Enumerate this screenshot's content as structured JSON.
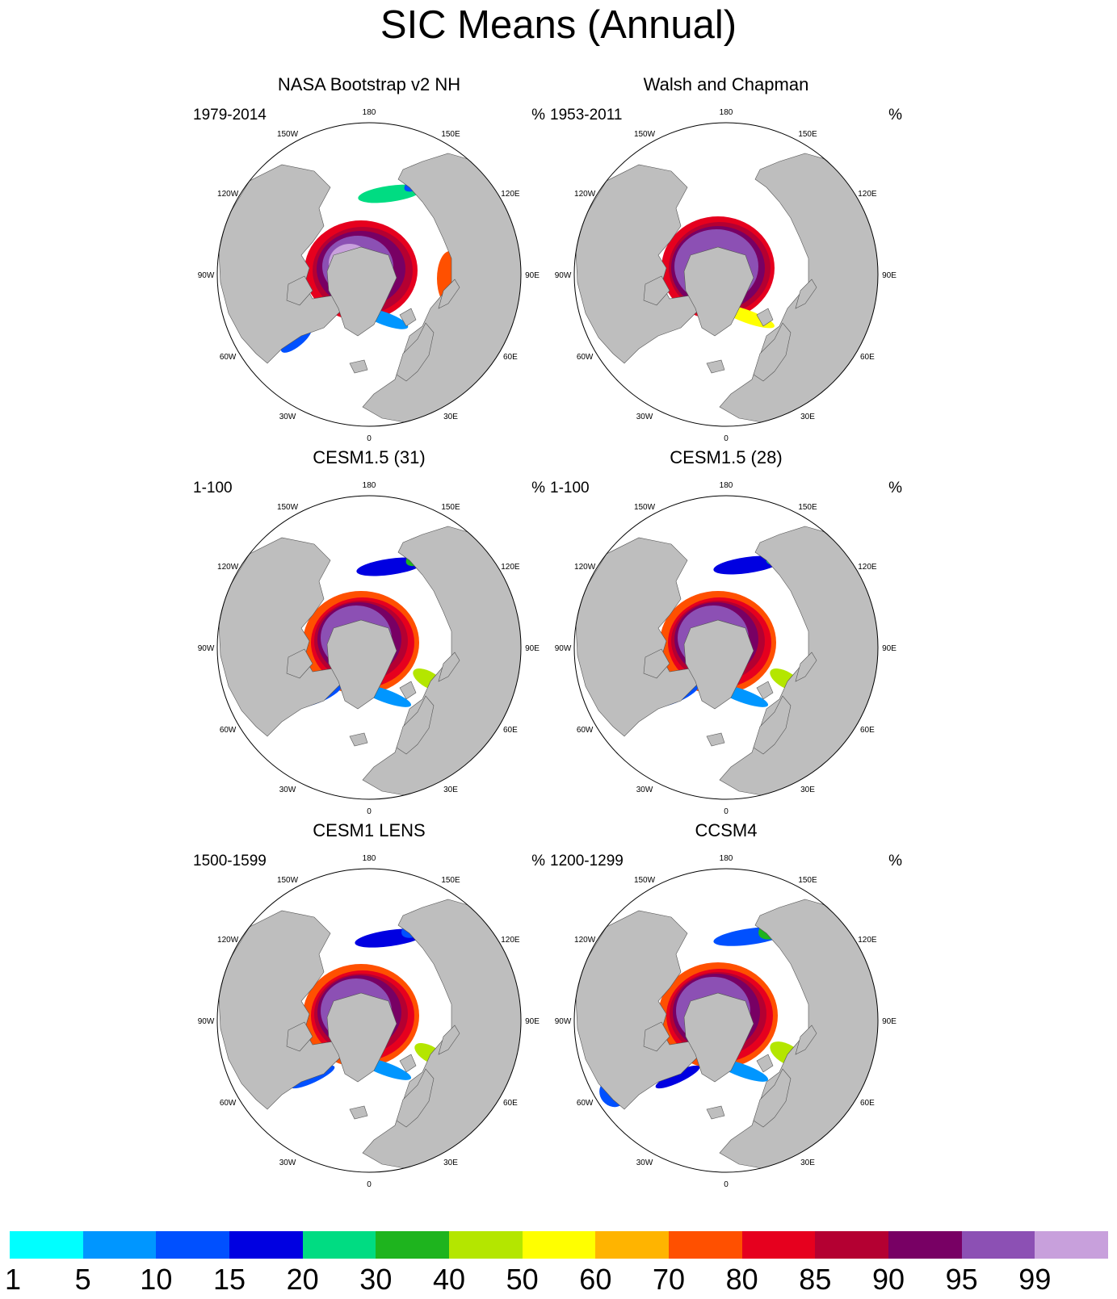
{
  "title": "SIC Means (Annual)",
  "unit": "%",
  "longitude_labels": [
    "180",
    "150E",
    "120E",
    "90E",
    "60E",
    "30E",
    "0",
    "30W",
    "60W",
    "90W",
    "120W",
    "150W"
  ],
  "panels": [
    {
      "title": "NASA Bootstrap v2 NH",
      "period": "1979-2014",
      "unit": "%"
    },
    {
      "title": "Walsh and Chapman",
      "period": "1953-2011",
      "unit": "%"
    },
    {
      "title": "CESM1.5 (31)",
      "period": "1-100",
      "unit": "%"
    },
    {
      "title": "CESM1.5 (28)",
      "period": "1-100",
      "unit": "%"
    },
    {
      "title": "CESM1 LENS",
      "period": "1500-1599",
      "unit": "%"
    },
    {
      "title": "CCSM4",
      "period": "1200-1299",
      "unit": "%"
    }
  ],
  "colorbar": {
    "labels": [
      "1",
      "5",
      "10",
      "15",
      "20",
      "30",
      "40",
      "50",
      "60",
      "70",
      "80",
      "85",
      "90",
      "95",
      "99"
    ],
    "colors": [
      "#00ffff",
      "#0096ff",
      "#0050ff",
      "#0000e1",
      "#00dc82",
      "#1eb41e",
      "#b4e600",
      "#ffff00",
      "#ffb400",
      "#ff5000",
      "#e6001e",
      "#b40032",
      "#780064",
      "#8c50b4",
      "#c8a0dc"
    ]
  },
  "colors": {
    "land": "#bebebe",
    "ocean": "#ffffff"
  }
}
